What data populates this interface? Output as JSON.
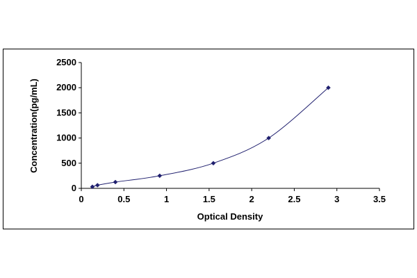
{
  "chart_data": {
    "type": "scatter",
    "xlabel": "Optical Density",
    "ylabel": "Concentration(pg/mL)",
    "xlim": [
      0,
      3.5
    ],
    "ylim": [
      0,
      2500
    ],
    "x_ticks": [
      0,
      0.5,
      1,
      1.5,
      2,
      2.5,
      3,
      3.5
    ],
    "x_tick_labels": [
      "0",
      "0.5",
      "1",
      "1.5",
      "2",
      "2.5",
      "3",
      "3.5"
    ],
    "y_ticks": [
      0,
      500,
      1000,
      1500,
      2000,
      2500
    ],
    "y_tick_labels": [
      "0",
      "500",
      "1000",
      "1500",
      "2000",
      "2500"
    ],
    "grid": false,
    "legend": false,
    "series": [
      {
        "x": [
          0.13,
          0.19,
          0.4,
          0.92,
          1.55,
          2.2,
          2.9
        ],
        "y": [
          31.25,
          62.5,
          125,
          250,
          500,
          1000,
          2000
        ],
        "marker": "diamond",
        "color": "#1f1f6e",
        "line": "smooth"
      }
    ]
  }
}
